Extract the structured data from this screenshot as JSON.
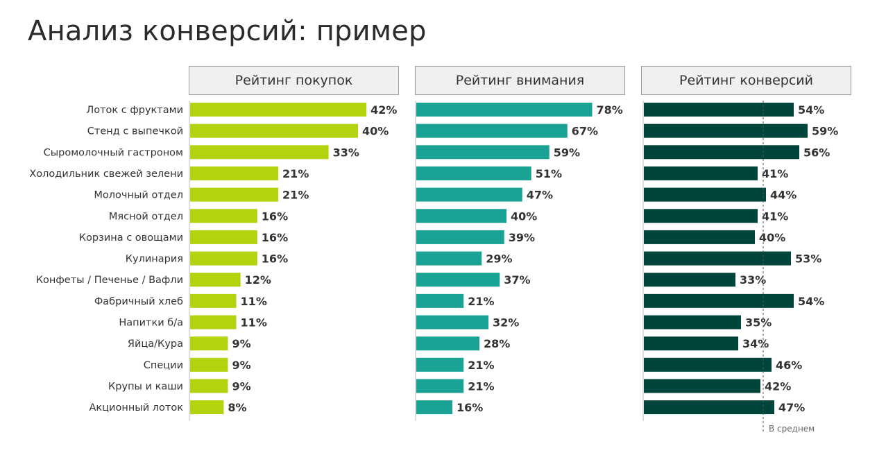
{
  "title": "Анализ конверсий: пример",
  "colors": {
    "purchases": "#b5d20f",
    "attention": "#1aa395",
    "conversions": "#00443c",
    "axis": "#bbbbbb"
  },
  "chart_data": {
    "type": "bar",
    "orientation": "horizontal",
    "categories": [
      "Лоток с фруктами",
      "Стенд с выпечкой",
      "Сыромолочный гастроном",
      "Холодильник свежей зелени",
      "Молочный отдел",
      "Мясной отдел",
      "Корзина с овощами",
      "Кулинария",
      "Конфеты / Печенье / Вафли",
      "Фабричный хлеб",
      "Напитки б/а",
      "Яйца/Кура",
      "Специи",
      "Крупы и каши",
      "Акционный лоток"
    ],
    "panels": [
      {
        "title": "Рейтинг покупок",
        "values": [
          42,
          40,
          33,
          21,
          21,
          16,
          16,
          16,
          12,
          11,
          11,
          9,
          9,
          9,
          8
        ],
        "labels": [
          "42%",
          "40%",
          "33%",
          "21%",
          "21%",
          "16%",
          "16%",
          "16%",
          "12%",
          "11%",
          "11%",
          "9%",
          "9%",
          "9%",
          "8%"
        ]
      },
      {
        "title": "Рейтинг внимания",
        "values": [
          78,
          67,
          59,
          51,
          47,
          40,
          39,
          29,
          37,
          21,
          32,
          28,
          21,
          21,
          16
        ],
        "labels": [
          "78%",
          "67%",
          "59%",
          "51%",
          "47%",
          "40%",
          "39%",
          "29%",
          "37%",
          "21%",
          "32%",
          "28%",
          "21%",
          "21%",
          "16%"
        ]
      },
      {
        "title": "Рейтинг конверсий",
        "values": [
          54,
          59,
          56,
          41,
          44,
          41,
          40,
          53,
          33,
          54,
          35,
          34,
          46,
          42,
          47
        ],
        "labels": [
          "54%",
          "59%",
          "56%",
          "41%",
          "44%",
          "41%",
          "40%",
          "53%",
          "33%",
          "54%",
          "35%",
          "34%",
          "46%",
          "42%",
          "47%"
        ],
        "average": 43,
        "average_label": "В среднем"
      }
    ]
  }
}
